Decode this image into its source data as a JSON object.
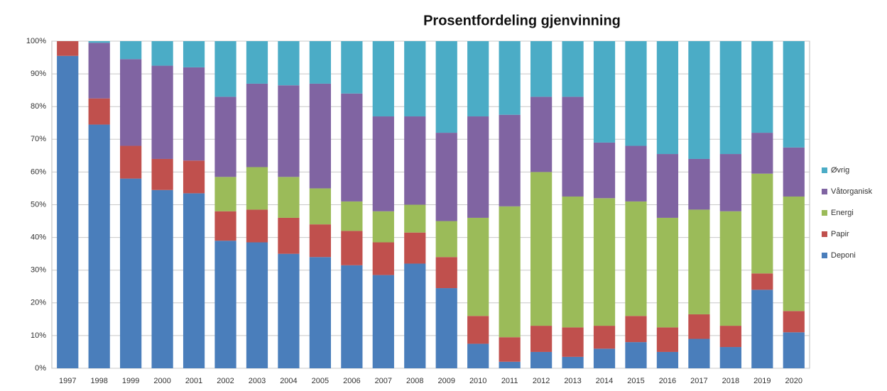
{
  "chart_data": {
    "type": "stacked_bar",
    "title": "Prosentfordeling gjenvinning",
    "categories": [
      "1997",
      "1998",
      "1999",
      "2000",
      "2001",
      "2002",
      "2003",
      "2004",
      "2005",
      "2006",
      "2007",
      "2008",
      "2009",
      "2010",
      "2011",
      "2012",
      "2013",
      "2014",
      "2015",
      "2016",
      "2017",
      "2018",
      "2019",
      "2020"
    ],
    "series": [
      {
        "name": "Deponi",
        "color": "#4a7ebb",
        "values": [
          95.5,
          74.5,
          58,
          54.5,
          53.5,
          39,
          38.5,
          35,
          34,
          31.5,
          28.5,
          32,
          24.5,
          7.5,
          2,
          5,
          3.5,
          6,
          8,
          5,
          9,
          6.5,
          24,
          11
        ]
      },
      {
        "name": "Papir",
        "color": "#c0504d",
        "values": [
          4.5,
          8,
          10,
          9.5,
          10,
          9,
          10,
          11,
          10,
          10.5,
          10,
          9.5,
          9.5,
          8.5,
          7.5,
          8,
          9,
          7,
          8,
          7.5,
          7.5,
          6.5,
          5,
          6.5
        ]
      },
      {
        "name": "Energi",
        "color": "#9bbb59",
        "values": [
          0,
          0,
          0,
          0,
          0,
          10.5,
          13,
          12.5,
          11,
          9,
          9.5,
          8.5,
          11,
          30,
          40,
          47,
          40,
          39,
          35,
          33.5,
          32,
          35,
          30.5,
          35
        ]
      },
      {
        "name": "Våtorganisk",
        "color": "#8064a2",
        "values": [
          0,
          17,
          26.5,
          28.5,
          28.5,
          24.5,
          25.5,
          28,
          32,
          33,
          29,
          27,
          27,
          31,
          28,
          23,
          30.5,
          17,
          17,
          19.5,
          15.5,
          17.5,
          12.5,
          15
        ]
      },
      {
        "name": "Øvrig",
        "color": "#4bacc6",
        "values": [
          0,
          0.5,
          5.5,
          7.5,
          8,
          17,
          13,
          13.5,
          13,
          16,
          23,
          23,
          28,
          23,
          22.5,
          17,
          17,
          31,
          32,
          34.5,
          36,
          34.5,
          28,
          32.5
        ]
      }
    ],
    "ylim": [
      0,
      100
    ],
    "yticks": [
      {
        "value": 0,
        "label": "0%"
      },
      {
        "value": 10,
        "label": "10%"
      },
      {
        "value": 20,
        "label": "20%"
      },
      {
        "value": 30,
        "label": "30%"
      },
      {
        "value": 40,
        "label": "40%"
      },
      {
        "value": 50,
        "label": "50%"
      },
      {
        "value": 60,
        "label": "60%"
      },
      {
        "value": 70,
        "label": "70%"
      },
      {
        "value": 80,
        "label": "80%"
      },
      {
        "value": 90,
        "label": "90%"
      },
      {
        "value": 100,
        "label": "100%"
      }
    ],
    "grid": true,
    "legend": "right"
  }
}
